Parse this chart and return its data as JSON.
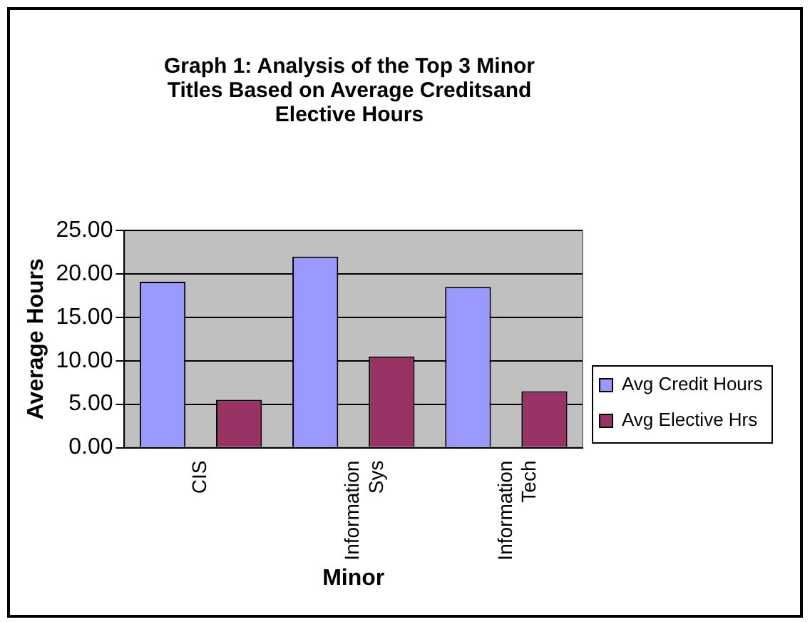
{
  "chart_data": {
    "type": "bar",
    "title": "Graph 1:  Analysis of the Top 3 Minor Titles Based on Average Creditsand Elective Hours",
    "xlabel": "Minor",
    "ylabel": "Average Hours",
    "categories": [
      "CIS",
      "Information Sys",
      "Information Tech"
    ],
    "series": [
      {
        "name": "Avg Credit Hours",
        "color": "#9999ff",
        "values": [
          19.1,
          22.0,
          18.5
        ]
      },
      {
        "name": "Avg Elective Hrs",
        "color": "#993366",
        "values": [
          5.5,
          10.5,
          6.5
        ]
      }
    ],
    "ylim": [
      0,
      25
    ],
    "yticks": [
      {
        "value": 0,
        "label": "0.00"
      },
      {
        "value": 5,
        "label": "5.00"
      },
      {
        "value": 10,
        "label": "10.00"
      },
      {
        "value": 15,
        "label": "15.00"
      },
      {
        "value": 20,
        "label": "20.00"
      },
      {
        "value": 25,
        "label": "25.00"
      }
    ],
    "grid": "y",
    "legend": "right"
  }
}
